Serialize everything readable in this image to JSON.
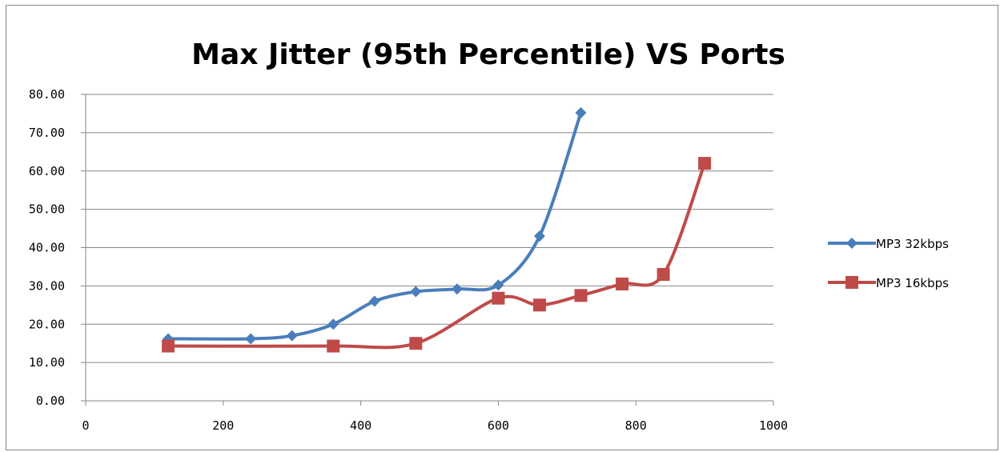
{
  "chart_data": {
    "type": "line",
    "title": "Max Jitter (95th Percentile) VS Ports",
    "xlabel": "",
    "ylabel": "",
    "xlim": [
      0,
      1000
    ],
    "ylim": [
      0,
      80
    ],
    "x_ticks": [
      "0",
      "200",
      "400",
      "600",
      "800",
      "1000"
    ],
    "y_ticks": [
      "0.00",
      "10.00",
      "20.00",
      "30.00",
      "40.00",
      "50.00",
      "60.00",
      "70.00",
      "80.00"
    ],
    "grid": "horizontal",
    "legend_position": "right",
    "series": [
      {
        "name": "MP3 32kbps",
        "color": "#4a7ebb",
        "marker": "diamond",
        "smooth": true,
        "x": [
          120,
          240,
          300,
          360,
          420,
          480,
          540,
          600,
          660,
          720
        ],
        "y": [
          16.2,
          16.2,
          17.0,
          20.0,
          26.0,
          28.5,
          29.2,
          30.2,
          43.0,
          75.2
        ]
      },
      {
        "name": "MP3 16kbps",
        "color": "#be4b48",
        "marker": "square",
        "smooth": true,
        "x": [
          120,
          360,
          480,
          600,
          660,
          720,
          780,
          840,
          900
        ],
        "y": [
          14.3,
          14.3,
          15.0,
          26.8,
          25.0,
          27.5,
          30.5,
          33.0,
          62.0
        ]
      }
    ]
  }
}
